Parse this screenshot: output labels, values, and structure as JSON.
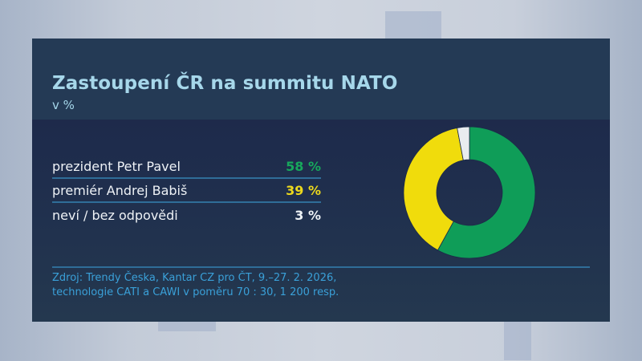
{
  "title": "Zastoupení ČR na summitu NATO",
  "subtitle": "v %",
  "rows": [
    {
      "label": "prezident Petr Pavel",
      "value": "58 %",
      "color": "#17a85c"
    },
    {
      "label": "premiér Andrej Babiš",
      "value": "39 %",
      "color": "#ecd81d"
    },
    {
      "label": "neví / bez odpovědi",
      "value": "3 %",
      "color": "#eef2f6"
    }
  ],
  "source": {
    "line1": "Zdroj: Trendy Česka, Kantar CZ pro ČT, 9.–27. 2. 2026,",
    "line2": "technologie CATI a CAWI v poměru 70 : 30, 1 200 resp."
  },
  "chart_data": {
    "type": "pie",
    "variant": "donut",
    "title": "Zastoupení ČR na summitu NATO",
    "subtitle": "v %",
    "categories": [
      "prezident Petr Pavel",
      "premiér Andrej Babiš",
      "neví / bez odpovědi"
    ],
    "values": [
      58,
      39,
      3
    ],
    "colors": [
      "#0f9d58",
      "#f0dc0c",
      "#e9ecef"
    ],
    "unit": "%",
    "start_angle": "top, clockwise",
    "legend_position": "left (table)"
  }
}
